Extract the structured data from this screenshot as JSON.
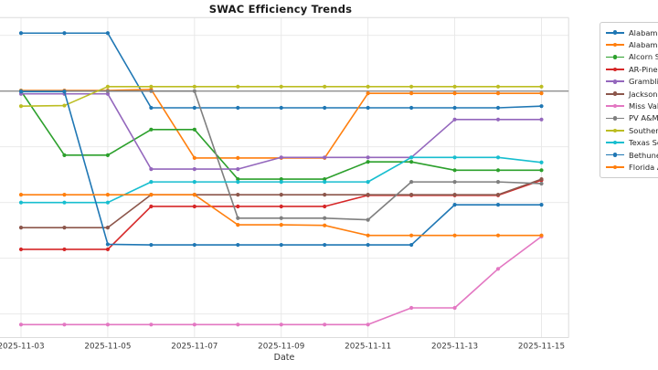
{
  "chart_data": {
    "type": "line",
    "title": "SWAC Efficiency Trends",
    "xlabel": "Date",
    "ylabel": "",
    "x": [
      "2025-11-03",
      "2025-11-04",
      "2025-11-05",
      "2025-11-06",
      "2025-11-07",
      "2025-11-08",
      "2025-11-09",
      "2025-11-10",
      "2025-11-11",
      "2025-11-12",
      "2025-11-13",
      "2025-11-14",
      "2025-11-15"
    ],
    "x_tick_labels": [
      "2025-11-03",
      "2025-11-05",
      "2025-11-07",
      "2025-11-09",
      "2025-11-11",
      "2025-11-13",
      "2025-11-15"
    ],
    "x_tick_indices": [
      0,
      2,
      4,
      6,
      8,
      10,
      12
    ],
    "grid": true,
    "y_gridline_values": [
      10,
      0,
      -10,
      -20,
      -30,
      -40
    ],
    "reference_line_y": 0,
    "ylim": [
      -44.2,
      13.2
    ],
    "y_axis_labels_visible": false,
    "legend_position": "right outside plot, clipped by image edge",
    "series": [
      {
        "name": "Alabama",
        "color": "#1f77b4",
        "values": [
          10.4,
          10.4,
          10.4,
          -3.0,
          -3.0,
          -3.0,
          -3.0,
          -3.0,
          -3.0,
          -3.0,
          -3.0,
          -3.0,
          -2.7
        ]
      },
      {
        "name": "Alabama",
        "color": "#ff7f0e",
        "values": [
          0.1,
          0.1,
          0.1,
          0.3,
          -12.0,
          -12.0,
          -12.0,
          -12.0,
          -0.4,
          -0.4,
          -0.4,
          -0.4,
          -0.4
        ]
      },
      {
        "name": "Alcorn St",
        "color": "#2ca02c",
        "values": [
          0.0,
          -11.5,
          -11.5,
          -6.9,
          -6.9,
          -15.8,
          -15.8,
          -15.8,
          -12.7,
          -12.7,
          -14.2,
          -14.2,
          -14.2
        ]
      },
      {
        "name": "AR-Pine B",
        "color": "#d62728",
        "values": [
          -28.4,
          -28.4,
          -28.4,
          -20.7,
          -20.7,
          -20.7,
          -20.7,
          -20.7,
          -18.7,
          -18.7,
          -18.7,
          -18.7,
          -16.0
        ]
      },
      {
        "name": "Gramblin",
        "color": "#9467bd",
        "values": [
          -0.5,
          -0.5,
          -0.5,
          -14.0,
          -14.0,
          -14.0,
          -11.9,
          -11.9,
          -11.9,
          -11.9,
          -5.1,
          -5.1,
          -5.1
        ]
      },
      {
        "name": "Jackson S",
        "color": "#8c564b",
        "values": [
          -24.5,
          -24.5,
          -24.5,
          -18.6,
          -18.6,
          -18.6,
          -18.6,
          -18.6,
          -18.6,
          -18.6,
          -18.6,
          -18.6,
          -15.8
        ]
      },
      {
        "name": "Miss Valle",
        "color": "#e377c2",
        "values": [
          -41.9,
          -41.9,
          -41.9,
          -41.9,
          -41.9,
          -41.9,
          -41.9,
          -41.9,
          -41.9,
          -38.9,
          -38.9,
          -31.9,
          -26.1
        ]
      },
      {
        "name": "PV A&M",
        "color": "#7f7f7f",
        "values": [
          0.0,
          0.0,
          0.0,
          0.0,
          0.0,
          -22.8,
          -22.8,
          -22.8,
          -23.1,
          -16.3,
          -16.3,
          -16.3,
          -16.6
        ]
      },
      {
        "name": "Southern",
        "color": "#bcbd22",
        "values": [
          -2.7,
          -2.6,
          0.8,
          0.8,
          0.8,
          0.8,
          0.8,
          0.8,
          0.8,
          0.8,
          0.8,
          0.8,
          0.8
        ]
      },
      {
        "name": "Texas So",
        "color": "#17becf",
        "values": [
          -20.0,
          -20.0,
          -20.0,
          -16.3,
          -16.3,
          -16.3,
          -16.3,
          -16.3,
          -16.3,
          -11.9,
          -11.9,
          -11.9,
          -12.8
        ]
      },
      {
        "name": "Bethune-",
        "color": "#1f77b4",
        "values": [
          -0.1,
          -0.1,
          -27.5,
          -27.6,
          -27.6,
          -27.6,
          -27.6,
          -27.6,
          -27.6,
          -27.6,
          -20.4,
          -20.4,
          -20.4
        ]
      },
      {
        "name": "Florida A",
        "color": "#ff7f0e",
        "values": [
          -18.6,
          -18.6,
          -18.6,
          -18.6,
          -18.6,
          -24.0,
          -24.0,
          -24.1,
          -25.9,
          -25.9,
          -25.9,
          -25.9,
          -25.9
        ]
      }
    ]
  },
  "colors": {
    "background": "#ffffff",
    "gridline": "#e7e7e7",
    "spine": "#dcdcdc",
    "reference_line": "#8f8f8f",
    "title_text": "#1a1a1a",
    "tick_text": "#3b3b3b",
    "legend_border": "#cccccc",
    "legend_text": "#262626"
  }
}
